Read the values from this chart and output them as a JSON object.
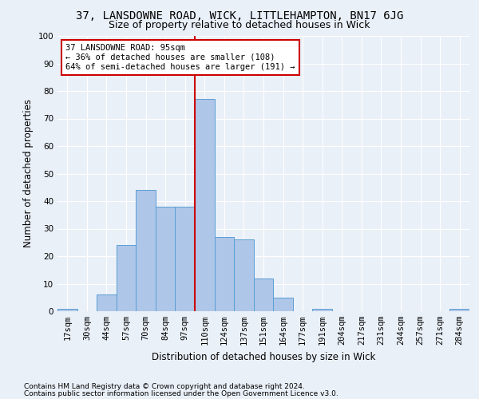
{
  "title": "37, LANSDOWNE ROAD, WICK, LITTLEHAMPTON, BN17 6JG",
  "subtitle": "Size of property relative to detached houses in Wick",
  "xlabel": "Distribution of detached houses by size in Wick",
  "ylabel": "Number of detached properties",
  "footnote1": "Contains HM Land Registry data © Crown copyright and database right 2024.",
  "footnote2": "Contains public sector information licensed under the Open Government Licence v3.0.",
  "bar_labels": [
    "17sqm",
    "30sqm",
    "44sqm",
    "57sqm",
    "70sqm",
    "84sqm",
    "97sqm",
    "110sqm",
    "124sqm",
    "137sqm",
    "151sqm",
    "164sqm",
    "177sqm",
    "191sqm",
    "204sqm",
    "217sqm",
    "231sqm",
    "244sqm",
    "257sqm",
    "271sqm",
    "284sqm"
  ],
  "bar_values": [
    1,
    0,
    6,
    24,
    44,
    38,
    38,
    77,
    27,
    26,
    12,
    5,
    0,
    1,
    0,
    0,
    0,
    0,
    0,
    0,
    1
  ],
  "bar_color": "#aec6e8",
  "bar_edge_color": "#5a9fd4",
  "vline_x_index": 6,
  "vline_color": "#cc0000",
  "annotation_line1": "37 LANSDOWNE ROAD: 95sqm",
  "annotation_line2": "← 36% of detached houses are smaller (108)",
  "annotation_line3": "64% of semi-detached houses are larger (191) →",
  "annotation_box_color": "#ffffff",
  "annotation_box_edge": "#cc0000",
  "ylim": [
    0,
    100
  ],
  "yticks": [
    0,
    10,
    20,
    30,
    40,
    50,
    60,
    70,
    80,
    90,
    100
  ],
  "bg_color": "#eaf0f8",
  "plot_bg_color": "#eaf0f8",
  "title_fontsize": 10,
  "subtitle_fontsize": 9,
  "axis_label_fontsize": 8.5,
  "tick_fontsize": 7.5,
  "annotation_fontsize": 7.5,
  "footnote_fontsize": 6.5
}
